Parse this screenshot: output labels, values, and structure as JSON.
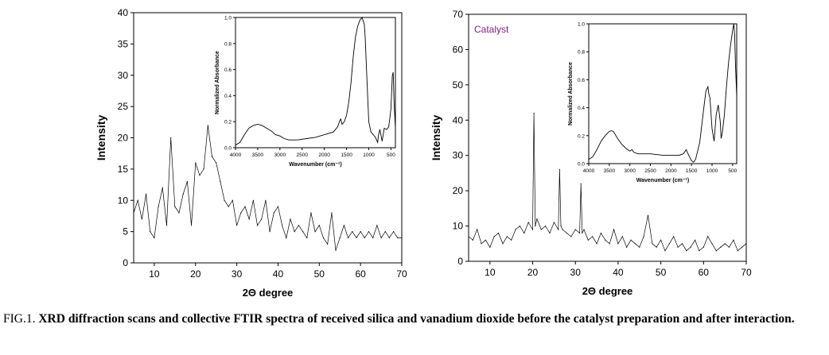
{
  "chart_data": [
    {
      "type": "line",
      "title": "",
      "xlabel": "2Θ degree",
      "ylabel": "Intensity",
      "xlim": [
        5,
        70
      ],
      "ylim": [
        0,
        40
      ],
      "xticks": [
        10,
        20,
        30,
        40,
        50,
        60,
        70
      ],
      "yticks": [
        0,
        5,
        10,
        15,
        20,
        25,
        30,
        35,
        40
      ],
      "grid": false,
      "series": [
        {
          "x": [
            5,
            6,
            7,
            8,
            9,
            10,
            11,
            12,
            13,
            14,
            15,
            16,
            17,
            18,
            19,
            20,
            21,
            22,
            23,
            24,
            25,
            26,
            27,
            28,
            29,
            30,
            31,
            32,
            33,
            34,
            35,
            36,
            37,
            38,
            39,
            40,
            41,
            42,
            43,
            44,
            45,
            46,
            47,
            48,
            49,
            50,
            51,
            52,
            53,
            54,
            55,
            56,
            57,
            58,
            59,
            60,
            61,
            62,
            63,
            64,
            65,
            66,
            67,
            68,
            69,
            70
          ],
          "values": [
            8,
            10,
            7,
            11,
            5,
            4,
            9,
            12,
            6,
            20,
            9,
            8,
            11,
            13,
            6,
            16,
            14,
            15,
            22,
            17,
            16,
            13,
            10,
            9,
            10,
            6,
            8,
            9,
            7,
            10,
            6,
            7,
            10,
            5,
            8,
            9,
            6,
            4,
            7,
            5,
            6,
            5,
            4,
            8,
            5,
            6,
            4,
            3,
            8,
            2,
            4,
            6,
            4,
            5,
            4,
            5,
            4,
            5,
            4,
            6,
            4,
            5,
            4,
            5,
            4,
            4
          ],
          "peak_labels": {}
        }
      ],
      "inset": {
        "type": "line",
        "xlabel": "Wavenumber (cm⁻¹)",
        "ylabel": "Normalized Absorbance",
        "xlim": [
          4000,
          400
        ],
        "ylim": [
          0,
          1.0
        ],
        "xticks": [
          4000,
          3500,
          3000,
          2500,
          2000,
          1500,
          1000,
          500
        ],
        "xtick_labels": [
          "4000",
          "3500",
          "3000",
          "2500",
          "2000",
          "1500",
          "1000",
          "500"
        ],
        "yticks": [
          0.0,
          0.2,
          0.4,
          0.6,
          0.8,
          1.0
        ],
        "ytick_labels": [
          "0.0",
          "0.2",
          "0.4",
          "0.6",
          "0.8",
          "1.0"
        ],
        "x": [
          4000,
          3900,
          3800,
          3700,
          3600,
          3500,
          3400,
          3300,
          3200,
          3100,
          3000,
          2900,
          2800,
          2600,
          2400,
          2200,
          2000,
          1800,
          1700,
          1650,
          1630,
          1600,
          1550,
          1500,
          1450,
          1400,
          1350,
          1300,
          1250,
          1200,
          1150,
          1100,
          1080,
          1050,
          1000,
          950,
          900,
          850,
          800,
          780,
          750,
          700,
          650,
          600,
          550,
          500,
          470,
          450,
          430,
          400
        ],
        "values": [
          0.02,
          0.04,
          0.1,
          0.15,
          0.17,
          0.18,
          0.17,
          0.15,
          0.13,
          0.1,
          0.09,
          0.07,
          0.06,
          0.06,
          0.07,
          0.08,
          0.1,
          0.12,
          0.16,
          0.21,
          0.22,
          0.18,
          0.2,
          0.25,
          0.35,
          0.5,
          0.7,
          0.85,
          0.93,
          0.98,
          1.0,
          0.95,
          0.85,
          0.6,
          0.2,
          0.12,
          0.1,
          0.08,
          0.04,
          0.1,
          0.14,
          0.05,
          0.15,
          0.14,
          0.16,
          0.3,
          0.55,
          0.58,
          0.35,
          0.15
        ]
      }
    },
    {
      "type": "line",
      "title": "",
      "xlabel": "2Θ degree",
      "ylabel": "Intensity",
      "xlim": [
        5,
        70
      ],
      "ylim": [
        0,
        70
      ],
      "xticks": [
        10,
        20,
        30,
        40,
        50,
        60,
        70
      ],
      "yticks": [
        0,
        10,
        20,
        30,
        40,
        50,
        60,
        70
      ],
      "grid": false,
      "annotation": "Catalyst",
      "annotation_color": "#7b1f7b",
      "series": [
        {
          "x": [
            5,
            6,
            7,
            8,
            9,
            10,
            11,
            12,
            13,
            14,
            15,
            16,
            17,
            18,
            19,
            20,
            20.3,
            20.6,
            21,
            22,
            23,
            24,
            25,
            26,
            26.3,
            26.6,
            27,
            28,
            29,
            30,
            31,
            31.3,
            31.6,
            32,
            33,
            34,
            35,
            36,
            37,
            38,
            39,
            40,
            41,
            42,
            43,
            44,
            45,
            46,
            47,
            48,
            49,
            50,
            51,
            52,
            53,
            54,
            55,
            56,
            57,
            58,
            59,
            60,
            61,
            62,
            63,
            64,
            65,
            66,
            67,
            68,
            69,
            70
          ],
          "values": [
            7,
            6,
            9,
            5,
            6,
            4,
            7,
            8,
            5,
            7,
            6,
            9,
            10,
            8,
            11,
            9,
            42,
            10,
            12,
            9,
            10,
            8,
            11,
            9,
            26,
            10,
            9,
            8,
            7,
            9,
            8,
            22,
            8,
            9,
            6,
            7,
            5,
            8,
            6,
            5,
            9,
            5,
            7,
            4,
            6,
            5,
            4,
            7,
            13,
            5,
            4,
            6,
            3,
            5,
            7,
            4,
            5,
            3,
            4,
            6,
            3,
            4,
            7,
            5,
            3,
            4,
            5,
            4,
            6,
            3,
            4,
            5
          ]
        }
      ],
      "inset": {
        "type": "line",
        "xlabel": "Wavenumber (cm⁻¹)",
        "ylabel": "Normalized Absorbance",
        "xlim": [
          4000,
          400
        ],
        "ylim": [
          0,
          1.0
        ],
        "xticks": [
          4000,
          3500,
          3000,
          2500,
          2000,
          1500,
          1000,
          500
        ],
        "xtick_labels": [
          "4000",
          "3500",
          "3000",
          "2500",
          "2000",
          "1500",
          "1000",
          "500"
        ],
        "yticks": [
          0.0,
          0.2,
          0.4,
          0.6,
          0.8,
          1.0
        ],
        "ytick_labels": [
          "0.0",
          "0.2",
          "0.4",
          "0.6",
          "0.8",
          "1.0"
        ],
        "x": [
          4000,
          3900,
          3800,
          3700,
          3600,
          3500,
          3450,
          3400,
          3300,
          3200,
          3100,
          3000,
          2950,
          2900,
          2800,
          2500,
          2200,
          2000,
          1800,
          1700,
          1650,
          1630,
          1600,
          1550,
          1500,
          1450,
          1400,
          1300,
          1200,
          1150,
          1100,
          1080,
          1050,
          1000,
          950,
          900,
          850,
          800,
          780,
          750,
          700,
          650,
          600,
          550,
          500,
          470,
          450,
          430,
          400
        ],
        "values": [
          0.03,
          0.05,
          0.1,
          0.16,
          0.2,
          0.23,
          0.235,
          0.23,
          0.18,
          0.14,
          0.11,
          0.09,
          0.1,
          0.08,
          0.07,
          0.07,
          0.06,
          0.06,
          0.06,
          0.07,
          0.09,
          0.1,
          0.08,
          0.05,
          0.02,
          0.01,
          0.03,
          0.15,
          0.4,
          0.52,
          0.55,
          0.5,
          0.47,
          0.25,
          0.16,
          0.35,
          0.42,
          0.3,
          0.18,
          0.22,
          0.35,
          0.55,
          0.72,
          0.85,
          0.95,
          1.0,
          0.92,
          0.7,
          0.48
        ]
      }
    }
  ],
  "caption": {
    "prefix": "FIG.1. ",
    "text": "XRD diffraction scans and collective FTIR spectra of received silica and vanadium dioxide before the catalyst preparation and after interaction."
  }
}
